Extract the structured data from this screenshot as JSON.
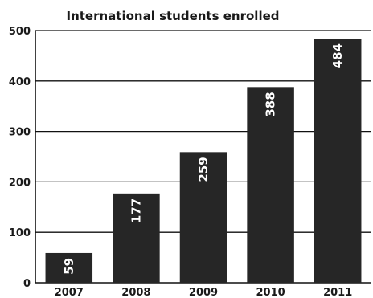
{
  "chart_data": {
    "type": "bar",
    "title": "International students enrolled",
    "xlabel": "",
    "ylabel": "",
    "categories": [
      "2007",
      "2008",
      "2009",
      "2010",
      "2011"
    ],
    "values": [
      59,
      177,
      259,
      388,
      484
    ],
    "data_labels": [
      "59",
      "177",
      "259",
      "388",
      "484"
    ],
    "ylim": [
      0,
      500
    ],
    "yticks": [
      "0",
      "100",
      "200",
      "300",
      "400",
      "500"
    ],
    "grid": true,
    "legend": "none",
    "bar_color": "#262626",
    "grid_color": "#111111"
  }
}
